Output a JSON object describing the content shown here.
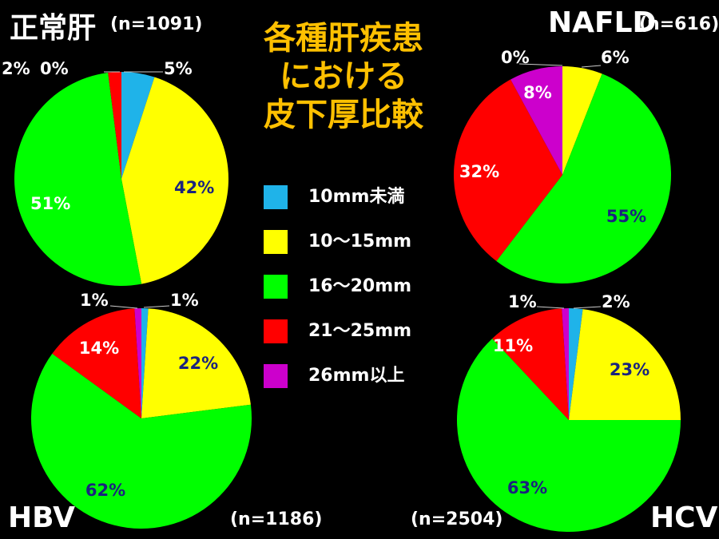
{
  "main_title": [
    "各種肝疾患",
    "における",
    "皮下厚比較"
  ],
  "legend": [
    {
      "label": "10mm未満",
      "color": "#1fb3e9"
    },
    {
      "label": "10〜15mm",
      "color": "#ffff00"
    },
    {
      "label": "16〜20mm",
      "color": "#00ff00"
    },
    {
      "label": "21〜25mm",
      "color": "#ff0000"
    },
    {
      "label": "26mm以上",
      "color": "#cc00cc"
    }
  ],
  "chart_data": [
    {
      "type": "pie",
      "title": "正常肝",
      "n_label": "(n=1091)",
      "labels": [
        "10mm未満",
        "10〜15mm",
        "16〜20mm",
        "21〜25mm",
        "26mm以上"
      ],
      "values": [
        5,
        42,
        51,
        2,
        0
      ],
      "value_labels": [
        "5%",
        "42%",
        "51%",
        "2%",
        "0%"
      ]
    },
    {
      "type": "pie",
      "title": "NAFLD",
      "n_label": "(n=616)",
      "labels": [
        "10mm未満",
        "10〜15mm",
        "16〜20mm",
        "21〜25mm",
        "26mm以上"
      ],
      "values": [
        0,
        6,
        55,
        32,
        8
      ],
      "value_labels": [
        "0%",
        "6%",
        "55%",
        "32%",
        "8%"
      ]
    },
    {
      "type": "pie",
      "title": "HBV",
      "n_label": "(n=1186)",
      "labels": [
        "10mm未満",
        "10〜15mm",
        "16〜20mm",
        "21〜25mm",
        "26mm以上"
      ],
      "values": [
        1,
        22,
        62,
        14,
        1
      ],
      "value_labels": [
        "1%",
        "22%",
        "62%",
        "14%",
        "1%"
      ]
    },
    {
      "type": "pie",
      "title": "HCV",
      "n_label": "(n=2504)",
      "labels": [
        "10mm未満",
        "10〜15mm",
        "16〜20mm",
        "21〜25mm",
        "26mm以上"
      ],
      "values": [
        2,
        23,
        63,
        11,
        1
      ],
      "value_labels": [
        "2%",
        "23%",
        "63%",
        "11%",
        "1%"
      ]
    }
  ]
}
